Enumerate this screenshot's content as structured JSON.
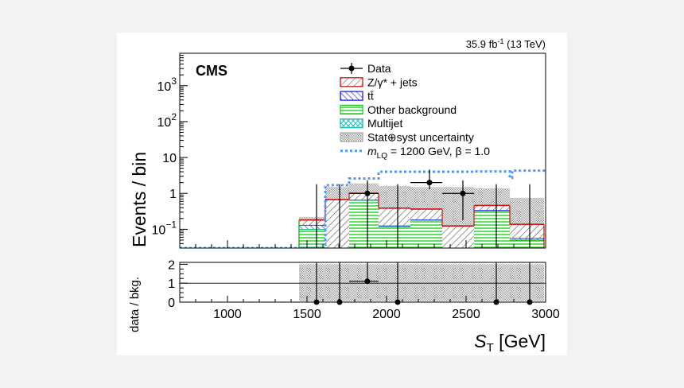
{
  "chart_data": [
    {
      "type": "bar",
      "panel": "main",
      "title": "",
      "lumi_label": "35.9 fb",
      "lumi_exp": "-1",
      "lumi_energy": " (13 TeV)",
      "experiment": "CMS",
      "xlabel_main": "S",
      "xlabel_sub": "T",
      "xlabel_unit": " [GeV]",
      "ylabel": "Events / bin",
      "xlim": [
        700,
        3000
      ],
      "ylim": [
        0.03,
        8000
      ],
      "y_scale": "log",
      "x_ticks": [
        1000,
        1500,
        2000,
        2500,
        3000
      ],
      "x_tick_labels": [
        "1000",
        "1500",
        "2000",
        "2500",
        "3000"
      ],
      "y_ticks": [
        {
          "value": 0.1,
          "base": "10",
          "exp": "−1"
        },
        {
          "value": 1,
          "base": "1",
          "exp": ""
        },
        {
          "value": 10,
          "base": "10",
          "exp": ""
        },
        {
          "value": 100,
          "base": "10",
          "exp": "2"
        },
        {
          "value": 1000,
          "base": "10",
          "exp": "3"
        }
      ],
      "bin_edges": [
        1450,
        1615,
        1765,
        1950,
        2150,
        2350,
        2550,
        2775,
        2990
      ],
      "stack": [
        {
          "name": "Other background",
          "color": "#22cc22",
          "values": [
            0.1,
            0.02,
            0.65,
            0.12,
            0.18,
            0.02,
            0.33,
            0.05
          ]
        },
        {
          "name": "Multijet",
          "color": "#22bbbb",
          "values": [
            0.002,
            0.002,
            0.002,
            0.002,
            0.002,
            0.002,
            0.002,
            0.002
          ]
        },
        {
          "name": "tt̄",
          "color": "#1a1aee",
          "values": [
            0.03,
            0.003,
            0.01,
            0.005,
            0.005,
            0.002,
            0.01,
            0.005
          ]
        },
        {
          "name": "Z/γ* + jets",
          "color": "#cc1111",
          "values": [
            0.05,
            0.65,
            0.34,
            0.26,
            0.18,
            0.1,
            0.12,
            0.08
          ]
        }
      ],
      "uncertainty": {
        "name": "Stat⊕syst uncertainty",
        "low": [
          0.06,
          0.06,
          0.06,
          0.06,
          0.04,
          0.03,
          0.03,
          0.03
        ],
        "high": [
          0.22,
          1.5,
          1.9,
          1.6,
          1.5,
          1.5,
          1.4,
          0.75
        ]
      },
      "data_points": [
        {
          "x": 1880,
          "y": 1.0,
          "xerr": [
            1765,
            1950
          ],
          "yerr": [
            0.0,
            2.3
          ]
        },
        {
          "x": 2270,
          "y": 2.0,
          "xerr": [
            2150,
            2350
          ],
          "yerr": [
            1.3,
            4.6
          ]
        },
        {
          "x": 2480,
          "y": 1.0,
          "xerr": [
            2350,
            2550
          ],
          "yerr": [
            0.18,
            2.3
          ]
        }
      ],
      "empty_data_x": [
        1560,
        1705,
        2070,
        2690,
        2900
      ],
      "signal": {
        "name": "m",
        "name_sub": "LQ",
        "name_rest": " = 1200 GeV, β = 1.0",
        "color": "#5599ee",
        "steps": [
          [
            700,
            0.03
          ],
          [
            1615,
            0.03
          ],
          [
            1615,
            1.7
          ],
          [
            1765,
            1.7
          ],
          [
            1765,
            2.6
          ],
          [
            1950,
            2.6
          ],
          [
            1950,
            4.0
          ],
          [
            2550,
            4.0
          ],
          [
            2550,
            4.1
          ],
          [
            2775,
            4.1
          ],
          [
            2775,
            2.7
          ],
          [
            2790,
            2.7
          ],
          [
            2790,
            4.3
          ],
          [
            3000,
            4.3
          ]
        ]
      },
      "legend": [
        {
          "kind": "data",
          "label": "Data"
        },
        {
          "kind": "hatch",
          "label": "Z/γ* + jets",
          "color": "#cc1111"
        },
        {
          "kind": "hatch2",
          "label": "tt̄",
          "color": "#1a1aee"
        },
        {
          "kind": "horiz",
          "label": "Other background",
          "color": "#22cc22"
        },
        {
          "kind": "cross",
          "label": "Multijet",
          "color": "#22bbbb"
        },
        {
          "kind": "unc",
          "label": "Stat⊕syst uncertainty"
        },
        {
          "kind": "signal",
          "label": ""
        }
      ],
      "legend_position": "top-right"
    },
    {
      "type": "scatter",
      "panel": "ratio",
      "ylabel": "data / bkg.",
      "xlim": [
        700,
        3000
      ],
      "ylim": [
        0,
        2.1
      ],
      "y_ticks": [
        0,
        1,
        2
      ],
      "y_tick_labels": [
        "0",
        "1",
        "2"
      ],
      "reference_line": 1,
      "unc_band": {
        "x": [
          1450,
          2990
        ],
        "low": 0.05,
        "high": 2.0
      },
      "points": [
        {
          "x": 1560,
          "y": 0,
          "yerr_high": 2.2
        },
        {
          "x": 1705,
          "y": 0,
          "yerr_high": 2.2
        },
        {
          "x": 1880,
          "y": 1.1,
          "yerr_high": 2.2,
          "xerr": [
            1765,
            1950
          ]
        },
        {
          "x": 2070,
          "y": 0,
          "yerr_high": 2.2
        },
        {
          "x": 2690,
          "y": 0,
          "yerr_high": 2.2
        },
        {
          "x": 2900,
          "y": 0,
          "yerr_high": 2.2
        }
      ]
    }
  ]
}
